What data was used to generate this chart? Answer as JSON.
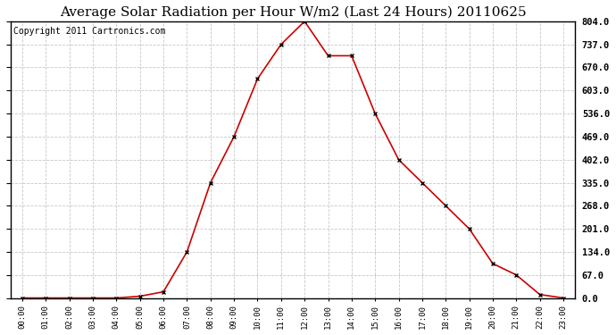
{
  "title": "Average Solar Radiation per Hour W/m2 (Last 24 Hours) 20110625",
  "copyright_text": "Copyright 2011 Cartronics.com",
  "hours": [
    "00:00",
    "01:00",
    "02:00",
    "03:00",
    "04:00",
    "05:00",
    "06:00",
    "07:00",
    "08:00",
    "09:00",
    "10:00",
    "11:00",
    "12:00",
    "13:00",
    "14:00",
    "15:00",
    "16:00",
    "17:00",
    "18:00",
    "19:00",
    "20:00",
    "21:00",
    "22:00",
    "23:00"
  ],
  "values": [
    0,
    0,
    0,
    0,
    0,
    5,
    18,
    134,
    335,
    469,
    637,
    737,
    804,
    704,
    704,
    536,
    402,
    335,
    268,
    201,
    100,
    67,
    10,
    0
  ],
  "line_color": "#cc0000",
  "marker": "x",
  "marker_color": "#000000",
  "bg_color": "#ffffff",
  "grid_color": "#c8c8c8",
  "ylim": [
    0,
    804
  ],
  "yticks": [
    0.0,
    67.0,
    134.0,
    201.0,
    268.0,
    335.0,
    402.0,
    469.0,
    536.0,
    603.0,
    670.0,
    737.0,
    804.0
  ],
  "title_fontsize": 11,
  "copyright_fontsize": 7
}
